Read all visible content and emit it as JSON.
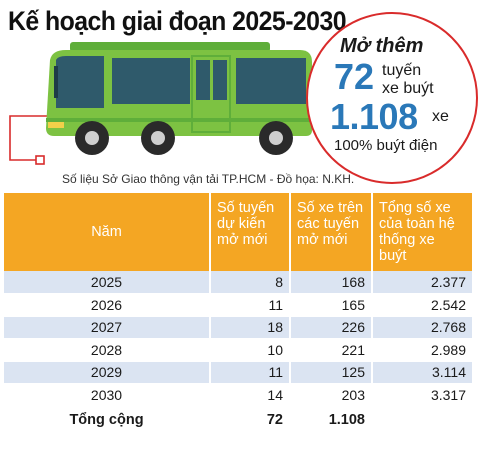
{
  "title": "Kế hoạch giai đoạn 2025-2030",
  "highlight": {
    "heading": "Mở thêm",
    "routes_value": "72",
    "routes_unit_line1": "tuyến",
    "routes_unit_line2": "xe buýt",
    "buses_value": "1.108",
    "buses_unit": "xe",
    "note": "100% buýt điện"
  },
  "source": "Số liệu Sở Giao thông vận tải TP.HCM - Đồ họa: N.KH.",
  "colors": {
    "header_bg": "#f4a623",
    "row_stripe": "#dbe4f2",
    "accent_blue": "#2a78b8",
    "circle_border": "#d92b2b",
    "bus_green": "#7dc242"
  },
  "icon": "electric-bus-icon",
  "chart_data": {
    "type": "table",
    "columns": [
      "Năm",
      "Số tuyến dự kiến mở mới",
      "Số xe trên các tuyến mở mới",
      "Tổng số xe của toàn hệ thống xe buýt"
    ],
    "rows": [
      {
        "year": "2025",
        "new_routes": "8",
        "buses_new_routes": "168",
        "total_buses": "2.377"
      },
      {
        "year": "2026",
        "new_routes": "11",
        "buses_new_routes": "165",
        "total_buses": "2.542"
      },
      {
        "year": "2027",
        "new_routes": "18",
        "buses_new_routes": "226",
        "total_buses": "2.768"
      },
      {
        "year": "2028",
        "new_routes": "10",
        "buses_new_routes": "221",
        "total_buses": "2.989"
      },
      {
        "year": "2029",
        "new_routes": "11",
        "buses_new_routes": "125",
        "total_buses": "3.114"
      },
      {
        "year": "2030",
        "new_routes": "14",
        "buses_new_routes": "203",
        "total_buses": "3.317"
      }
    ],
    "total": {
      "label": "Tổng cộng",
      "new_routes": "72",
      "buses_new_routes": "1.108",
      "total_buses": ""
    }
  }
}
